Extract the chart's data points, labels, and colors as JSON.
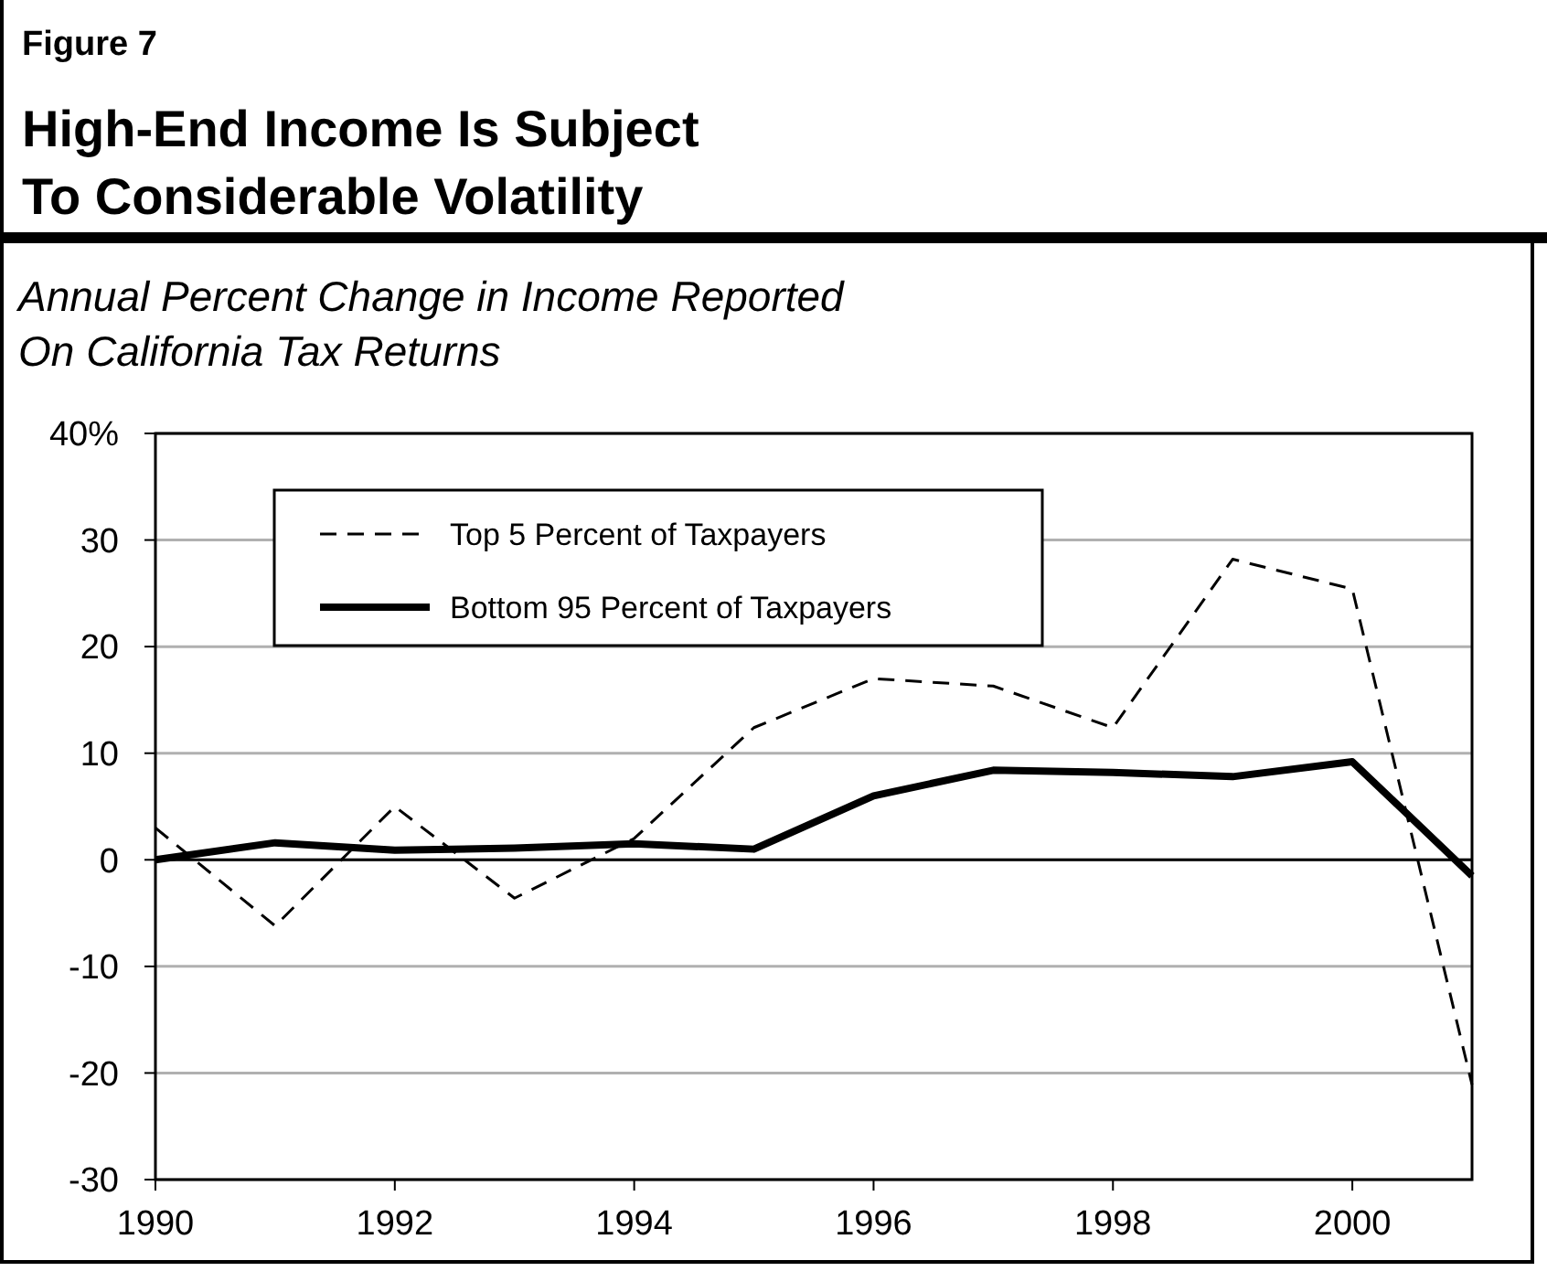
{
  "chart_data": {
    "type": "line",
    "title": "High-End Income Is Subject\nTo Considerable Volatility",
    "subtitle": "Annual Percent Change in Income Reported\nOn California Tax Returns",
    "annotations": [
      "Figure 7"
    ],
    "x": [
      1990,
      1991,
      1992,
      1993,
      1994,
      1995,
      1996,
      1997,
      1998,
      1999,
      2000,
      2001
    ],
    "series": [
      {
        "name": "Top 5 Percent of Taxpayers",
        "color": "#000000",
        "line_style": "dashed",
        "values": [
          3,
          -6.2,
          5,
          -3.6,
          2,
          12.4,
          17,
          16.3,
          12.4,
          28.2,
          25.4,
          -21.1
        ]
      },
      {
        "name": "Bottom 95 Percent of Taxpayers",
        "color": "#000000",
        "line_style": "solid",
        "values": [
          0,
          1.6,
          0.9,
          1.1,
          1.5,
          1,
          6,
          8.4,
          8.2,
          7.8,
          9.2,
          -1.5
        ]
      }
    ],
    "xlim": [
      1990,
      2001
    ],
    "xticks": [
      1990,
      1992,
      1994,
      1996,
      1998,
      2000
    ],
    "ylim": [
      -30,
      40
    ],
    "yticks": [
      {
        "value": 40,
        "label": "40%"
      },
      30,
      20,
      10,
      0,
      -10,
      -20,
      -30
    ],
    "grid": "y",
    "legend": "top left",
    "marker": "none"
  }
}
